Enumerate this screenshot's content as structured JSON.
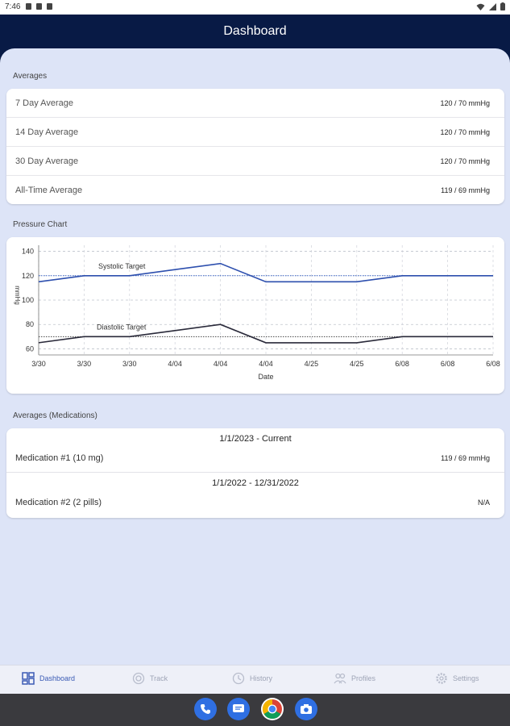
{
  "status": {
    "time": "7:46"
  },
  "appbar": {
    "title": "Dashboard"
  },
  "averages": {
    "label": "Averages",
    "rows": [
      {
        "label": "7 Day Average",
        "value": "120 / 70 mmHg"
      },
      {
        "label": "14 Day Average",
        "value": "120 / 70 mmHg"
      },
      {
        "label": "30 Day Average",
        "value": "120 / 70 mmHg"
      },
      {
        "label": "All-Time Average",
        "value": "119 / 69 mmHg"
      }
    ]
  },
  "pressure": {
    "label": "Pressure Chart"
  },
  "chart_data": {
    "type": "line",
    "title": "",
    "xlabel": "Date",
    "ylabel": "mmHg",
    "ylim": [
      55,
      145
    ],
    "yticks": [
      60,
      80,
      100,
      120,
      140
    ],
    "grid": true,
    "categories": [
      "3/30",
      "3/30",
      "3/30",
      "4/04",
      "4/04",
      "4/04",
      "4/25",
      "4/25",
      "6/08",
      "6/08",
      "6/08"
    ],
    "series": [
      {
        "name": "",
        "color": "#2d4fae",
        "values": [
          115,
          120,
          120,
          125,
          130,
          115,
          115,
          115,
          120,
          120,
          120
        ]
      },
      {
        "name": "",
        "color": "#2a2a3a",
        "values": [
          65,
          70,
          70,
          75,
          80,
          65,
          65,
          65,
          70,
          70,
          70
        ]
      }
    ],
    "targets": [
      {
        "label": "Systolic Target",
        "value": 120,
        "color": "#3b64c8"
      },
      {
        "label": "Diastolic Target",
        "value": 70,
        "color": "#444444"
      }
    ]
  },
  "medications": {
    "label": "Averages (Medications)",
    "groups": [
      {
        "period": "1/1/2023 - Current",
        "name": "Medication #1 (10 mg)",
        "value": "119 / 69 mmHg"
      },
      {
        "period": "1/1/2022 - 12/31/2022",
        "name": "Medication #2 (2 pills)",
        "value": "N/A"
      }
    ]
  },
  "nav": {
    "items": [
      {
        "label": "Dashboard"
      },
      {
        "label": "Track"
      },
      {
        "label": "History"
      },
      {
        "label": "Profiles"
      },
      {
        "label": "Settings"
      }
    ]
  },
  "colors": {
    "accent": "#3b5bb5",
    "appbar": "#081a45",
    "background": "#dde4f7"
  },
  "dock_icons": [
    "phone-icon",
    "messages-icon",
    "chrome-icon",
    "camera-icon"
  ]
}
